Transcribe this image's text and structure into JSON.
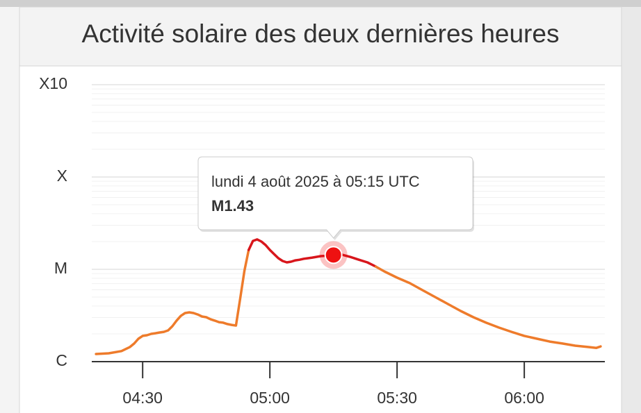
{
  "chart_data": {
    "type": "line",
    "title": "Activité solaire des deux dernières heures",
    "x": [
      "04:19",
      "04:22",
      "04:25",
      "04:27",
      "04:28",
      "04:29",
      "04:30",
      "04:31",
      "04:32",
      "04:33",
      "04:34",
      "04:35",
      "04:36",
      "04:37",
      "04:38",
      "04:39",
      "04:40",
      "04:41",
      "04:42",
      "04:43",
      "04:44",
      "04:45",
      "04:46",
      "04:47",
      "04:48",
      "04:49",
      "04:50",
      "04:51",
      "04:52",
      "04:53",
      "04:54",
      "04:55",
      "04:56",
      "04:57",
      "04:58",
      "04:59",
      "05:00",
      "05:01",
      "05:02",
      "05:03",
      "05:04",
      "05:05",
      "05:06",
      "05:07",
      "05:08",
      "05:09",
      "05:10",
      "05:12",
      "05:14",
      "05:15",
      "05:17",
      "05:19",
      "05:21",
      "05:23",
      "05:25",
      "05:27",
      "05:30",
      "05:33",
      "05:36",
      "05:39",
      "05:42",
      "05:45",
      "05:48",
      "05:51",
      "05:54",
      "05:57",
      "06:00",
      "06:03",
      "06:06",
      "06:09",
      "06:12",
      "06:15",
      "06:17",
      "06:18"
    ],
    "series": [
      {
        "color": "#ee7b2b",
        "values": [
          1.21e-06,
          1.23e-06,
          1.3e-06,
          1.44e-06,
          1.57e-06,
          1.77e-06,
          1.9e-06,
          1.93e-06,
          2e-06,
          2.03e-06,
          2.07e-06,
          2.1e-06,
          2.18e-06,
          2.42e-06,
          2.78e-06,
          3.13e-06,
          3.36e-06,
          3.42e-06,
          3.36e-06,
          3.24e-06,
          3.08e-06,
          3.03e-06,
          2.88e-06,
          2.78e-06,
          2.68e-06,
          2.64e-06,
          2.55e-06,
          2.5e-06,
          2.46e-06,
          4.83e-06,
          9.66e-06,
          1.62e-05,
          2.03e-05,
          2.11e-05,
          2e-05,
          1.83e-05,
          1.62e-05,
          1.46e-05,
          1.32e-05,
          1.23e-05,
          1.19e-05,
          1.21e-05,
          1.25e-05,
          1.27e-05,
          1.3e-05,
          1.32e-05,
          1.34e-05,
          1.39e-05,
          1.41e-05,
          1.43e-05,
          1.44e-05,
          1.36e-05,
          1.27e-05,
          1.19e-05,
          1.07e-05,
          9.49e-06,
          8.13e-06,
          7.08e-06,
          5.95e-06,
          5e-06,
          4.21e-06,
          3.54e-06,
          3.03e-06,
          2.64e-06,
          2.34e-06,
          2.1e-06,
          1.9e-06,
          1.77e-06,
          1.65e-06,
          1.57e-06,
          1.49e-06,
          1.44e-06,
          1.41e-06,
          1.46e-06
        ],
        "highlight": {
          "above": 1e-05,
          "color": "#d8161c"
        }
      }
    ],
    "xlim": [
      "04:18",
      "06:19"
    ],
    "xticks": [
      "04:30",
      "05:00",
      "05:30",
      "06:00"
    ],
    "ylim": [
      1e-06,
      0.001
    ],
    "yticks": [
      {
        "value": 1e-06,
        "label": "C"
      },
      {
        "value": 1e-05,
        "label": "M"
      },
      {
        "value": 0.0001,
        "label": "X"
      },
      {
        "value": 0.001,
        "label": "X10"
      }
    ],
    "log_y": true,
    "grid": true,
    "tooltip": {
      "x": "05:15",
      "date": "lundi 4 août 2025 à 05:15 UTC",
      "value": 1.43e-05,
      "label": "M1.43",
      "color": "#ee1111"
    }
  }
}
